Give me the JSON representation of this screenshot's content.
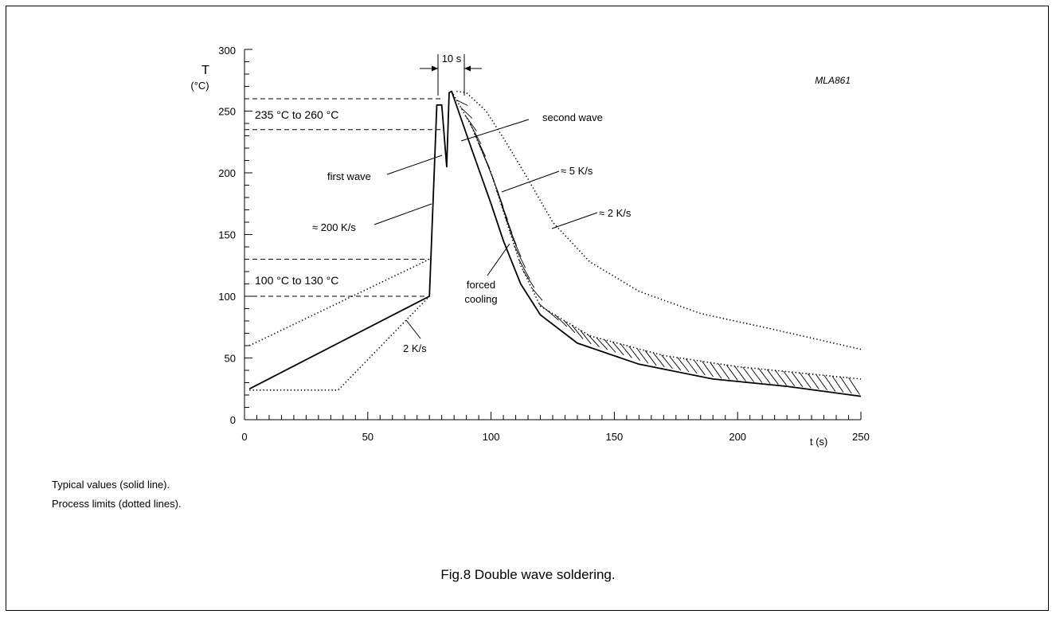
{
  "chart_data": {
    "type": "line",
    "title": "",
    "code": "MLA861",
    "xlabel": "t (s)",
    "ylabel": "T",
    "ylabel_unit": "(°C)",
    "xlim": [
      0,
      250
    ],
    "ylim": [
      0,
      300
    ],
    "x_ticks": [
      0,
      50,
      100,
      150,
      200,
      250
    ],
    "y_ticks": [
      0,
      50,
      100,
      150,
      200,
      250,
      300
    ],
    "grid": false,
    "series": [
      {
        "style": "solid",
        "points": [
          [
            2,
            25
          ],
          [
            75,
            100
          ],
          [
            78,
            255
          ],
          [
            80,
            255
          ],
          [
            82,
            205
          ],
          [
            83,
            265
          ],
          [
            84,
            266
          ],
          [
            92,
            220
          ],
          [
            100,
            175
          ],
          [
            105,
            145
          ],
          [
            112,
            110
          ],
          [
            120,
            85
          ],
          [
            135,
            62
          ],
          [
            160,
            45
          ],
          [
            190,
            33
          ],
          [
            220,
            27
          ],
          [
            250,
            19
          ]
        ]
      },
      {
        "style": "dotted",
        "points": [
          [
            2,
            60
          ],
          [
            75,
            130
          ]
        ]
      },
      {
        "style": "dotted",
        "points": [
          [
            2,
            24
          ],
          [
            38,
            24
          ],
          [
            75,
            100
          ]
        ]
      },
      {
        "style": "dotted",
        "points": [
          [
            84,
            266
          ],
          [
            92,
            238
          ],
          [
            100,
            200
          ],
          [
            108,
            150
          ],
          [
            112,
            125
          ],
          [
            120,
            92
          ],
          [
            140,
            68
          ],
          [
            170,
            52
          ],
          [
            200,
            43
          ],
          [
            250,
            33
          ]
        ]
      },
      {
        "style": "dotted",
        "points": [
          [
            86,
            266
          ],
          [
            90,
            265
          ],
          [
            98,
            250
          ],
          [
            106,
            225
          ],
          [
            115,
            195
          ],
          [
            125,
            160
          ],
          [
            140,
            128
          ],
          [
            160,
            104
          ],
          [
            185,
            86
          ],
          [
            215,
            73
          ],
          [
            250,
            57
          ]
        ]
      }
    ],
    "reference_lines": [
      {
        "y": 260
      },
      {
        "y": 235
      },
      {
        "y": 130
      },
      {
        "y": 100
      }
    ],
    "annotations": {
      "range_high": "235 °C  to  260 °C",
      "range_low": "100 °C  to  130 °C",
      "duration": "10 s",
      "first_wave": "first wave",
      "second_wave": "second wave",
      "rate_200": "≈ 200 K/s",
      "rate_5": "≈ 5 K/s",
      "rate_2_cool": "≈ 2 K/s",
      "rate_2_heat": "2 K/s",
      "forced_line1": "forced",
      "forced_line2": "cooling"
    }
  },
  "notes": {
    "line1": "Typical values (solid line).",
    "line2": "Process limits (dotted lines)."
  },
  "caption": "Fig.8  Double wave soldering."
}
